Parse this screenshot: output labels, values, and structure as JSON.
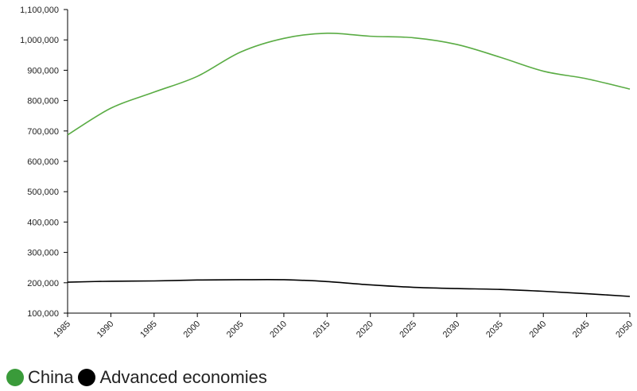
{
  "chart_data": {
    "type": "line",
    "x": [
      1985,
      1990,
      1995,
      2000,
      2005,
      2010,
      2015,
      2020,
      2025,
      2030,
      2035,
      2040,
      2045,
      2050
    ],
    "x_tick_labels": [
      "1985",
      "1990",
      "1995",
      "2000",
      "2005",
      "2010",
      "2015",
      "2020",
      "2025",
      "2030",
      "2035",
      "2040",
      "2045",
      "2050"
    ],
    "y_tick_labels": [
      "100,000",
      "200,000",
      "300,000",
      "400,000",
      "500,000",
      "600,000",
      "700,000",
      "800,000",
      "900,000",
      "1,000,000",
      "1,100,000"
    ],
    "y_ticks": [
      100000,
      200000,
      300000,
      400000,
      500000,
      600000,
      700000,
      800000,
      900000,
      1000000,
      1100000
    ],
    "xlim": [
      1985,
      2050
    ],
    "ylim": [
      100000,
      1100000
    ],
    "grid": false,
    "legend_position": "bottom-left",
    "series": [
      {
        "name": "China",
        "color": "#5aac44",
        "legend_color": "#3a9b3a",
        "values": [
          687000,
          775000,
          828000,
          880000,
          960000,
          1005000,
          1022000,
          1012000,
          1007000,
          985000,
          943000,
          897000,
          872000,
          838000
        ]
      },
      {
        "name": "Advanced economies",
        "color": "#000000",
        "legend_color": "#000000",
        "values": [
          202000,
          205000,
          206000,
          209000,
          210000,
          210000,
          204000,
          193000,
          185000,
          181000,
          178000,
          172000,
          164000,
          155000
        ]
      }
    ]
  }
}
